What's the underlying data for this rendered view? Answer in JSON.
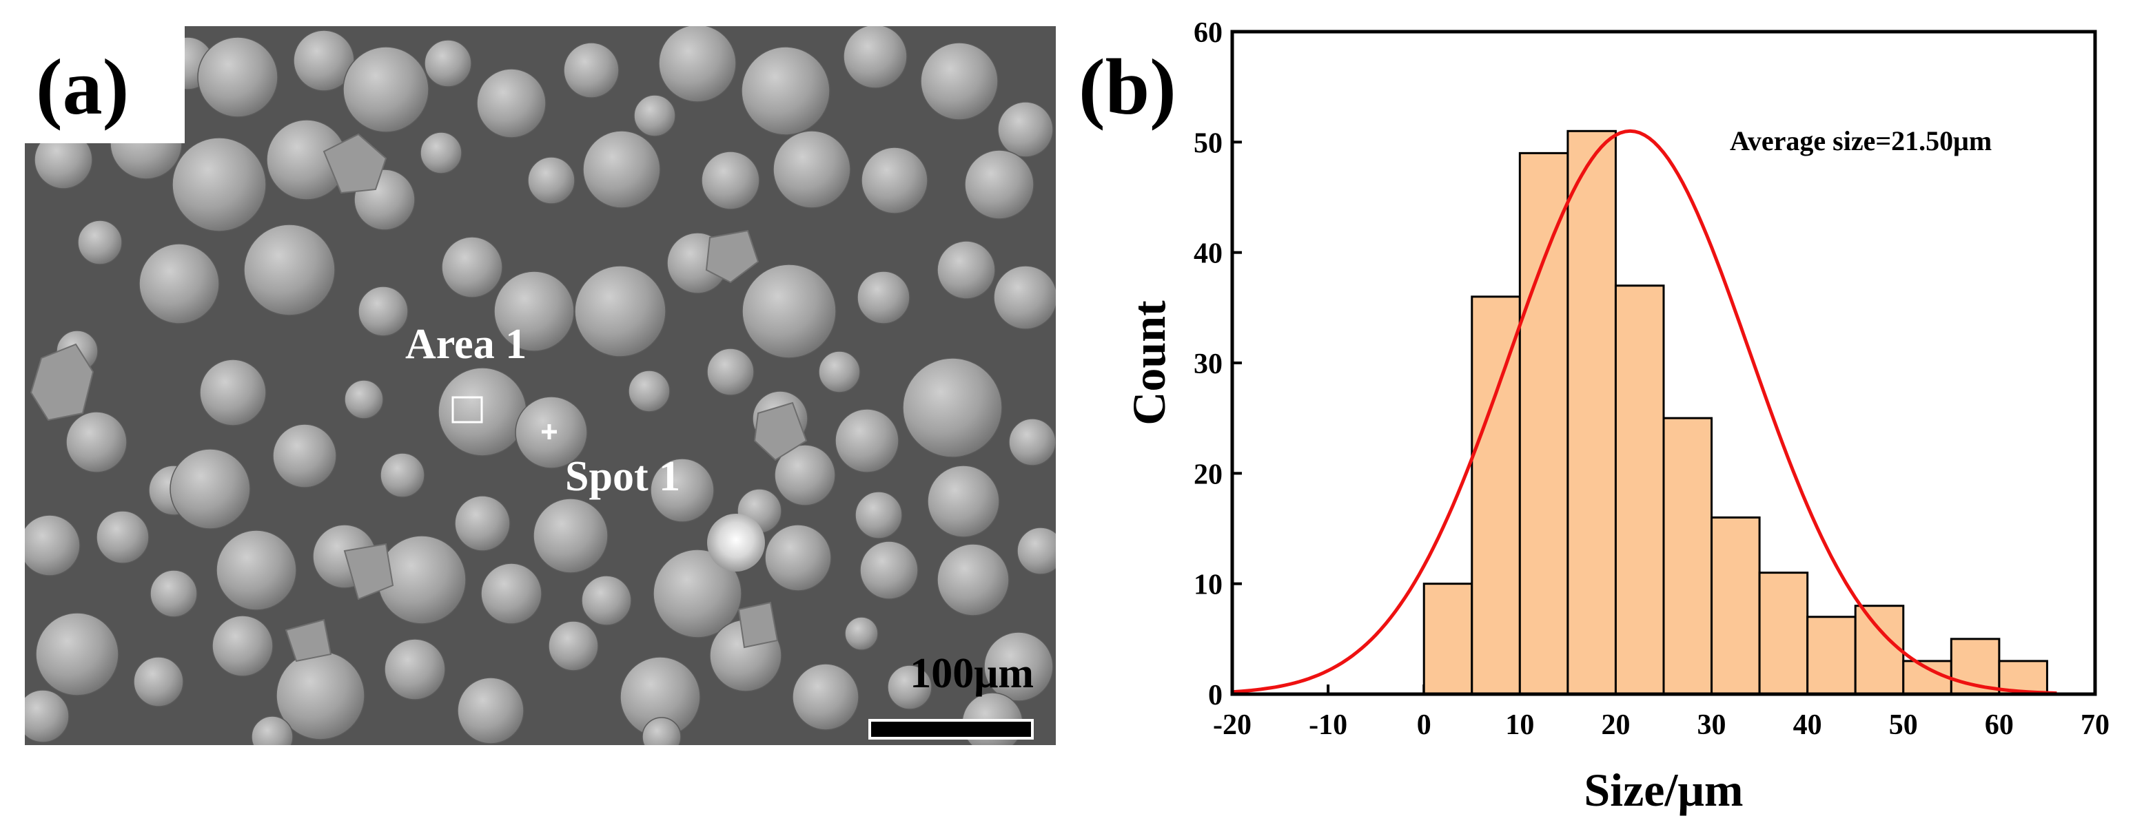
{
  "panel_a": {
    "label": "(a)",
    "area_label": "Area 1",
    "spot_label": "Spot 1",
    "scale_bar_label": "100μm",
    "background_color": "#545454"
  },
  "panel_b": {
    "label": "(b)"
  },
  "chart_data": {
    "type": "bar",
    "title": "",
    "annotation": "Average size=21.50μm",
    "xlabel": "Size/μm",
    "ylabel": "Count",
    "xlim": [
      -20,
      70
    ],
    "ylim": [
      0,
      60
    ],
    "xticks": [
      -20,
      -10,
      0,
      10,
      20,
      30,
      40,
      50,
      60,
      70
    ],
    "yticks": [
      0,
      10,
      20,
      30,
      40,
      50,
      60
    ],
    "bin_width": 5,
    "bins": [
      {
        "start": 0,
        "end": 5,
        "count": 10
      },
      {
        "start": 5,
        "end": 10,
        "count": 36
      },
      {
        "start": 10,
        "end": 15,
        "count": 49
      },
      {
        "start": 15,
        "end": 20,
        "count": 51
      },
      {
        "start": 20,
        "end": 25,
        "count": 37
      },
      {
        "start": 25,
        "end": 30,
        "count": 25
      },
      {
        "start": 30,
        "end": 35,
        "count": 16
      },
      {
        "start": 35,
        "end": 40,
        "count": 11
      },
      {
        "start": 40,
        "end": 45,
        "count": 7
      },
      {
        "start": 45,
        "end": 50,
        "count": 8
      },
      {
        "start": 50,
        "end": 55,
        "count": 3
      },
      {
        "start": 55,
        "end": 60,
        "count": 5
      },
      {
        "start": 60,
        "end": 65,
        "count": 3
      }
    ],
    "fit_curve": {
      "type": "normal",
      "mean": 21.5,
      "peak": 51
    },
    "bar_color": "#fcc796",
    "curve_color": "#ee1111"
  }
}
